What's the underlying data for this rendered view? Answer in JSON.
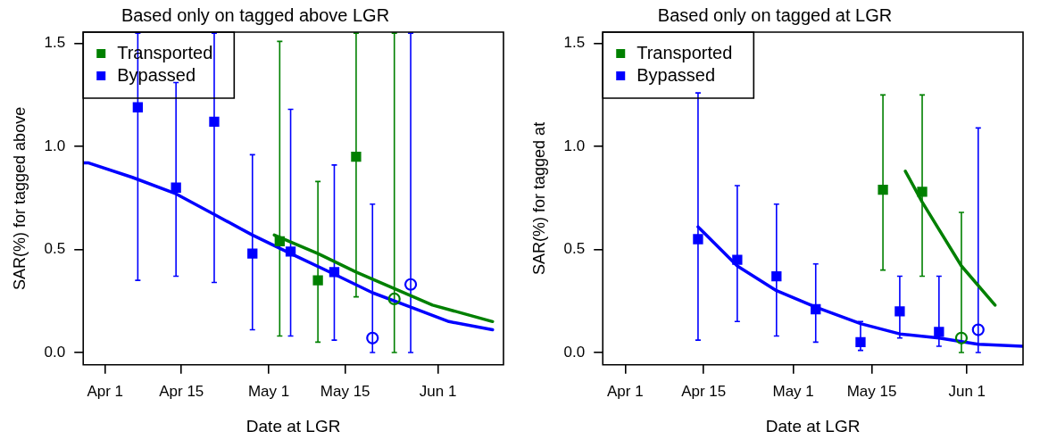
{
  "chart_data": [
    {
      "type": "scatter",
      "title": "Based only on tagged above LGR",
      "xlabel": "Date at LGR",
      "ylabel": "SAR(%) for tagged above",
      "legend": "top left",
      "grid": false,
      "xlim": [
        "--03-28",
        "--06-13"
      ],
      "xticks": [
        {
          "value": "--04-01",
          "label": "Apr 1"
        },
        {
          "value": "--04-15",
          "label": "Apr 15"
        },
        {
          "value": "--05-01",
          "label": "May 1"
        },
        {
          "value": "--05-15",
          "label": "May 15"
        },
        {
          "value": "--06-01",
          "label": "Jun 1"
        }
      ],
      "ylim": [
        -0.06,
        1.555
      ],
      "yticks": [
        {
          "value": 0,
          "label": "0.0"
        },
        {
          "value": 0.5,
          "label": "0.5"
        },
        {
          "value": 1,
          "label": "1.0"
        },
        {
          "value": 1.5,
          "label": "1.5"
        }
      ],
      "series": [
        {
          "name": "Transported",
          "color": "#008000",
          "marker": "square",
          "x": [
            "--05-03",
            "--05-10",
            "--05-17"
          ],
          "values": [
            0.54,
            0.35,
            0.95
          ],
          "errors": [
            [
              0.08,
              1.51
            ],
            [
              0.05,
              0.83
            ],
            [
              0.27,
              1.55
            ]
          ]
        },
        {
          "color": "#008000",
          "marker": "circle",
          "x": [
            "--05-24"
          ],
          "values": [
            0.26
          ],
          "errors": [
            [
              0,
              1.55
            ]
          ]
        },
        {
          "name": "Bypassed",
          "color": "#0000ff",
          "marker": "square",
          "x": [
            "--04-07",
            "--04-14",
            "--04-21",
            "--04-28",
            "--05-05",
            "--05-13"
          ],
          "values": [
            1.19,
            0.8,
            1.12,
            0.48,
            0.49,
            0.39
          ],
          "errors": [
            [
              0.35,
              1.55
            ],
            [
              0.37,
              1.31
            ],
            [
              0.34,
              1.55
            ],
            [
              0.11,
              0.96
            ],
            [
              0.08,
              1.18
            ],
            [
              0.06,
              0.91
            ]
          ]
        },
        {
          "color": "#0000ff",
          "marker": "circle",
          "x": [
            "--05-20",
            "--05-27"
          ],
          "values": [
            0.07,
            0.33
          ],
          "errors": [
            [
              0,
              0.72
            ],
            [
              0,
              1.55
            ]
          ]
        },
        {
          "type": "line",
          "color": "#0000ff",
          "marker": "none",
          "x": [
            "--03-28",
            "--03-29",
            "--04-06",
            "--04-14",
            "--04-21",
            "--04-28",
            "--05-05",
            "--05-13",
            "--05-20",
            "--05-27",
            "--06-03",
            "--06-11"
          ],
          "values": [
            0.92,
            0.92,
            0.85,
            0.77,
            0.67,
            0.57,
            0.48,
            0.38,
            0.29,
            0.22,
            0.15,
            0.11
          ]
        },
        {
          "type": "line",
          "color": "#008000",
          "marker": "none",
          "x": [
            "--05-02",
            "--05-10",
            "--05-17",
            "--05-24",
            "--05-31",
            "--06-11"
          ],
          "values": [
            0.57,
            0.48,
            0.39,
            0.31,
            0.23,
            0.15
          ]
        }
      ]
    },
    {
      "type": "scatter",
      "title": "Based only on tagged at LGR",
      "xlabel": "Date at LGR",
      "ylabel": "SAR(%) for tagged at",
      "legend": "top left",
      "grid": false,
      "xlim": [
        "--03-28",
        "--06-11"
      ],
      "xticks": [
        {
          "value": "--04-01",
          "label": "Apr 1"
        },
        {
          "value": "--04-15",
          "label": "Apr 15"
        },
        {
          "value": "--05-01",
          "label": "May 1"
        },
        {
          "value": "--05-15",
          "label": "May 15"
        },
        {
          "value": "--06-01",
          "label": "Jun 1"
        }
      ],
      "ylim": [
        -0.06,
        1.555
      ],
      "yticks": [
        {
          "value": 0,
          "label": "0.0"
        },
        {
          "value": 0.5,
          "label": "0.5"
        },
        {
          "value": 1,
          "label": "1.0"
        },
        {
          "value": 1.5,
          "label": "1.5"
        }
      ],
      "series": [
        {
          "name": "Transported",
          "color": "#008000",
          "marker": "square",
          "x": [
            "--05-17",
            "--05-24"
          ],
          "values": [
            0.79,
            0.78
          ],
          "errors": [
            [
              0.4,
              1.25
            ],
            [
              0.37,
              1.25
            ]
          ]
        },
        {
          "color": "#008000",
          "marker": "circle",
          "x": [
            "--05-31"
          ],
          "values": [
            0.07
          ],
          "errors": [
            [
              0,
              0.68
            ]
          ]
        },
        {
          "name": "Bypassed",
          "color": "#0000ff",
          "marker": "square",
          "x": [
            "--04-14",
            "--04-21",
            "--04-28",
            "--05-05",
            "--05-13",
            "--05-20",
            "--05-27"
          ],
          "values": [
            0.55,
            0.45,
            0.37,
            0.21,
            0.05,
            0.2,
            0.1
          ],
          "errors": [
            [
              0.06,
              1.26
            ],
            [
              0.15,
              0.81
            ],
            [
              0.08,
              0.72
            ],
            [
              0.05,
              0.43
            ],
            [
              0.01,
              0.15
            ],
            [
              0.07,
              0.37
            ],
            [
              0.03,
              0.37
            ]
          ]
        },
        {
          "color": "#0000ff",
          "marker": "circle",
          "x": [
            "--06-03"
          ],
          "values": [
            0.11
          ],
          "errors": [
            [
              0,
              1.09
            ]
          ]
        },
        {
          "type": "line",
          "color": "#0000ff",
          "marker": "none",
          "x": [
            "--04-14",
            "--04-21",
            "--04-28",
            "--05-05",
            "--05-13",
            "--05-20",
            "--05-27",
            "--06-03",
            "--06-11"
          ],
          "values": [
            0.61,
            0.42,
            0.3,
            0.22,
            0.14,
            0.09,
            0.07,
            0.04,
            0.03
          ]
        },
        {
          "type": "line",
          "color": "#008000",
          "marker": "none",
          "x": [
            "--05-21",
            "--05-24",
            "--05-31",
            "--06-06"
          ],
          "values": [
            0.88,
            0.73,
            0.42,
            0.23
          ]
        }
      ]
    }
  ]
}
